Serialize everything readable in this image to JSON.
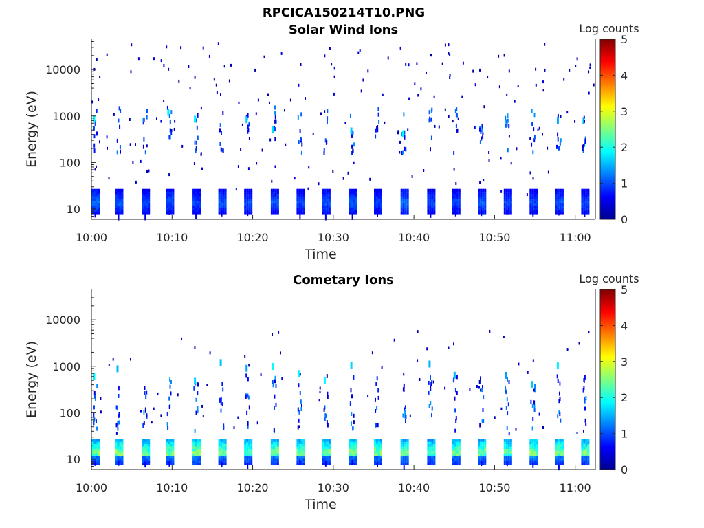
{
  "figure": {
    "title": "RPCICA150214T10.PNG"
  },
  "chart_data": [
    {
      "type": "heatmap",
      "title": "Solar Wind Ions",
      "xlabel": "Time",
      "ylabel": "Energy (eV)",
      "x_ticks": [
        "10:00",
        "10:10",
        "10:20",
        "10:30",
        "10:40",
        "10:50",
        "11:00"
      ],
      "x_tick_minutes": [
        0,
        10,
        20,
        30,
        40,
        50,
        60
      ],
      "xlim_minutes": [
        0,
        62.5
      ],
      "yscale": "log",
      "ylim": [
        6,
        45000
      ],
      "y_ticks": [
        "10",
        "100",
        "1000",
        "10000"
      ],
      "y_tick_values": [
        10,
        100,
        1000,
        10000
      ],
      "colorbar": {
        "label": "Log counts",
        "min": 0,
        "max": 5,
        "ticks": [
          "0",
          "1",
          "2",
          "3",
          "4",
          "5"
        ],
        "colormap": "jet"
      },
      "scan_times_minutes": [
        0.3,
        3.2,
        6.5,
        9.5,
        12.8,
        16.0,
        19.2,
        22.5,
        25.7,
        28.9,
        32.2,
        35.3,
        38.6,
        41.9,
        45.0,
        48.2,
        51.4,
        54.6,
        57.8,
        61.0
      ],
      "scan_peak_log_counts": [
        1.2,
        1.1,
        1.0,
        1.1,
        1.0,
        1.1,
        1.0,
        1.1,
        1.0,
        1.1,
        1.1,
        1.0,
        1.2,
        1.0,
        1.0,
        1.1,
        1.0,
        1.0,
        1.1,
        1.0
      ]
    },
    {
      "type": "heatmap",
      "title": "Cometary Ions",
      "xlabel": "Time",
      "ylabel": "Energy (eV)",
      "x_ticks": [
        "10:00",
        "10:10",
        "10:20",
        "10:30",
        "10:40",
        "10:50",
        "11:00"
      ],
      "x_tick_minutes": [
        0,
        10,
        20,
        30,
        40,
        50,
        60
      ],
      "xlim_minutes": [
        0,
        62.5
      ],
      "yscale": "log",
      "ylim": [
        6,
        45000
      ],
      "y_ticks": [
        "10",
        "100",
        "1000",
        "10000"
      ],
      "y_tick_values": [
        10,
        100,
        1000,
        10000
      ],
      "colorbar": {
        "label": "Log counts",
        "min": 0,
        "max": 5,
        "ticks": [
          "0",
          "1",
          "2",
          "3",
          "4",
          "5"
        ],
        "colormap": "jet"
      },
      "scan_times_minutes": [
        0.3,
        3.2,
        6.5,
        9.5,
        12.8,
        16.0,
        19.2,
        22.5,
        25.7,
        28.9,
        32.2,
        35.3,
        38.6,
        41.9,
        45.0,
        48.2,
        51.4,
        54.6,
        57.8,
        61.0
      ],
      "scan_peak_log_counts": [
        2.6,
        2.7,
        2.5,
        2.6,
        2.7,
        2.6,
        2.5,
        2.6,
        2.6,
        2.5,
        2.7,
        2.6,
        2.6,
        2.5,
        2.6,
        2.6,
        2.5,
        2.7,
        2.6,
        2.6
      ]
    }
  ]
}
